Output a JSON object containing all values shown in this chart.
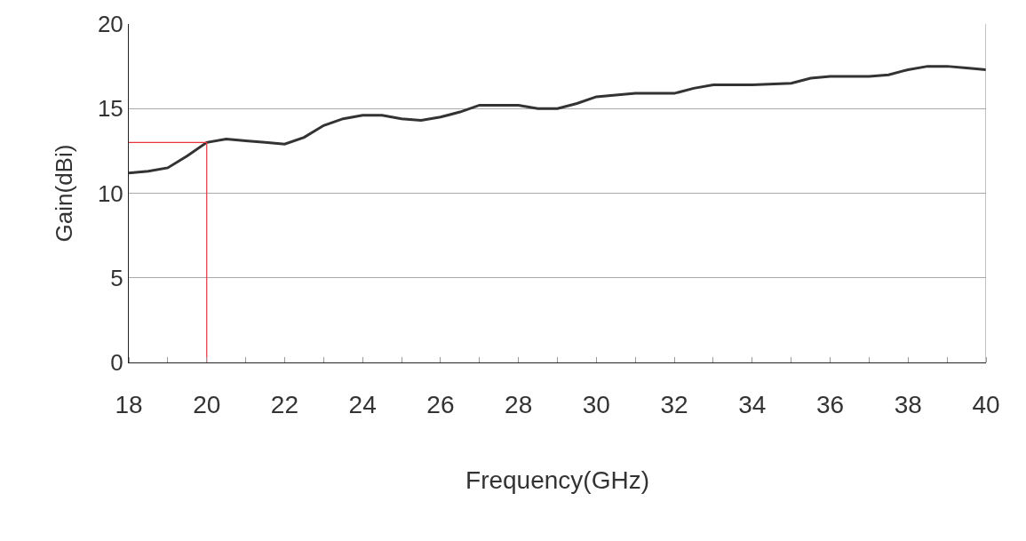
{
  "chart_data": {
    "type": "line",
    "xlabel": "Frequency(GHz)",
    "ylabel": "Gain(dBi)",
    "xlim": [
      18,
      40
    ],
    "xticks": [
      18,
      20,
      22,
      24,
      26,
      28,
      30,
      32,
      34,
      36,
      38,
      40
    ],
    "ylim": [
      0,
      20
    ],
    "yticks": [
      0,
      5,
      10,
      15,
      20
    ],
    "grid": "y",
    "marker": "none",
    "line_style": "solid",
    "series": [
      {
        "color": "#333333",
        "x": [
          18,
          18.5,
          19,
          19.5,
          20,
          20.5,
          21,
          21.5,
          22,
          22.5,
          23,
          23.5,
          24,
          24.5,
          25,
          25.5,
          26,
          26.5,
          27,
          27.5,
          28,
          28.5,
          29,
          29.5,
          30,
          30.5,
          31,
          32,
          32.5,
          33,
          34,
          35,
          35.5,
          36,
          37,
          37.5,
          38,
          38.5,
          39,
          39.5,
          40
        ],
        "values": [
          11.2,
          11.3,
          11.5,
          12.2,
          13.0,
          13.2,
          13.1,
          13.0,
          12.9,
          13.3,
          14.0,
          14.4,
          14.6,
          14.6,
          14.4,
          14.3,
          14.5,
          14.8,
          15.2,
          15.2,
          15.2,
          15.0,
          15.0,
          15.3,
          15.7,
          15.8,
          15.9,
          15.9,
          16.2,
          16.4,
          16.4,
          16.5,
          16.8,
          16.9,
          16.9,
          17.0,
          17.3,
          17.5,
          17.5,
          17.4,
          17.3
        ]
      },
      {
        "color": "#e8323c",
        "x": [
          18,
          20,
          20
        ],
        "values": [
          13,
          13,
          0
        ]
      }
    ]
  }
}
